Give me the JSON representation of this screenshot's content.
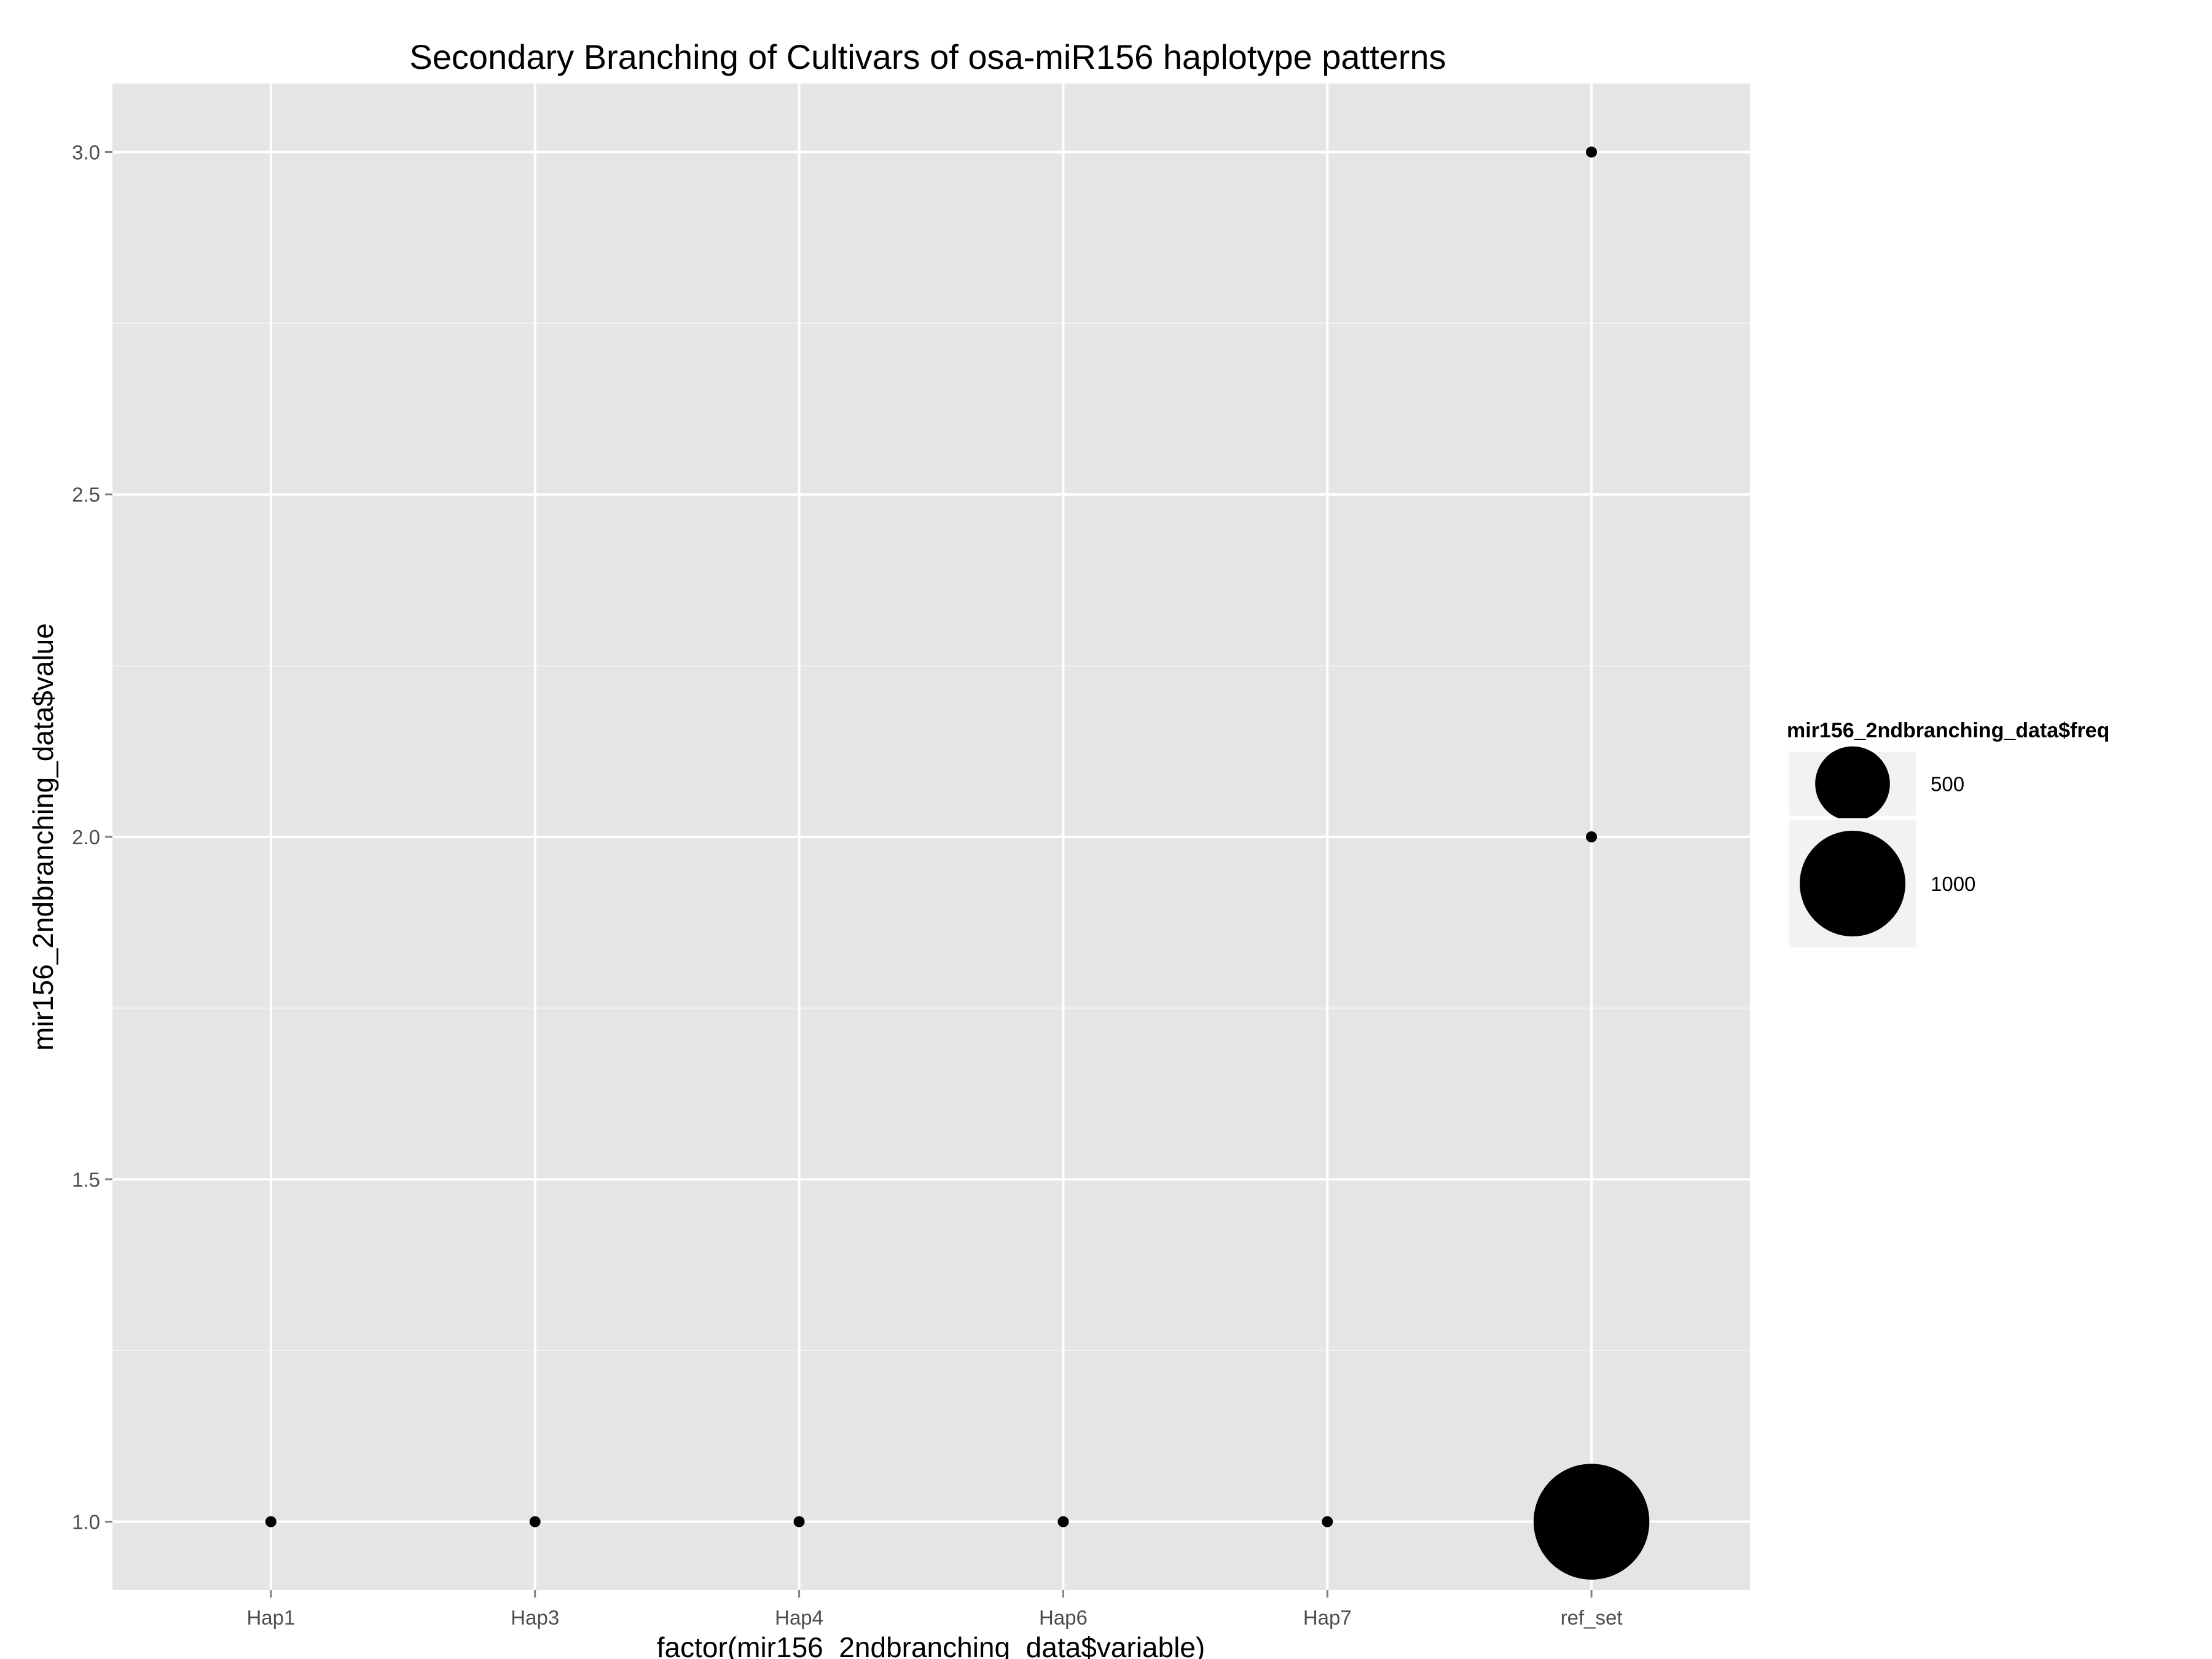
{
  "chart_data": {
    "type": "scatter",
    "title": "Secondary Branching of Cultivars of osa-miR156 haplotype patterns",
    "xlabel": "factor(mir156_2ndbranching_data$variable)",
    "ylabel": "mir156_2ndbranching_data$value",
    "categories": [
      "Hap1",
      "Hap3",
      "Hap4",
      "Hap6",
      "Hap7",
      "ref_set"
    ],
    "ylim": [
      0.9,
      3.1
    ],
    "yticks": [
      1.0,
      1.5,
      2.0,
      2.5,
      3.0
    ],
    "ytick_labels": [
      "1.0",
      "1.5",
      "2.0",
      "2.5",
      "3.0"
    ],
    "grid": true,
    "points": [
      {
        "x": "Hap1",
        "y": 1.0,
        "freq": 1
      },
      {
        "x": "Hap3",
        "y": 1.0,
        "freq": 1
      },
      {
        "x": "Hap4",
        "y": 1.0,
        "freq": 1
      },
      {
        "x": "Hap6",
        "y": 1.0,
        "freq": 1
      },
      {
        "x": "Hap7",
        "y": 1.0,
        "freq": 1
      },
      {
        "x": "ref_set",
        "y": 1.0,
        "freq": 1200
      },
      {
        "x": "ref_set",
        "y": 2.0,
        "freq": 3
      },
      {
        "x": "ref_set",
        "y": 3.0,
        "freq": 1
      }
    ],
    "legend": {
      "title": "mir156_2ndbranching_data$freq",
      "placement": "right",
      "entries": [
        {
          "label": "500",
          "value": 500
        },
        {
          "label": "1000",
          "value": 1000
        }
      ]
    },
    "colors": {
      "panel": "#e5e5e5",
      "grid": "#ffffff",
      "point": "#000000",
      "tick_text": "#4d4d4d"
    }
  }
}
